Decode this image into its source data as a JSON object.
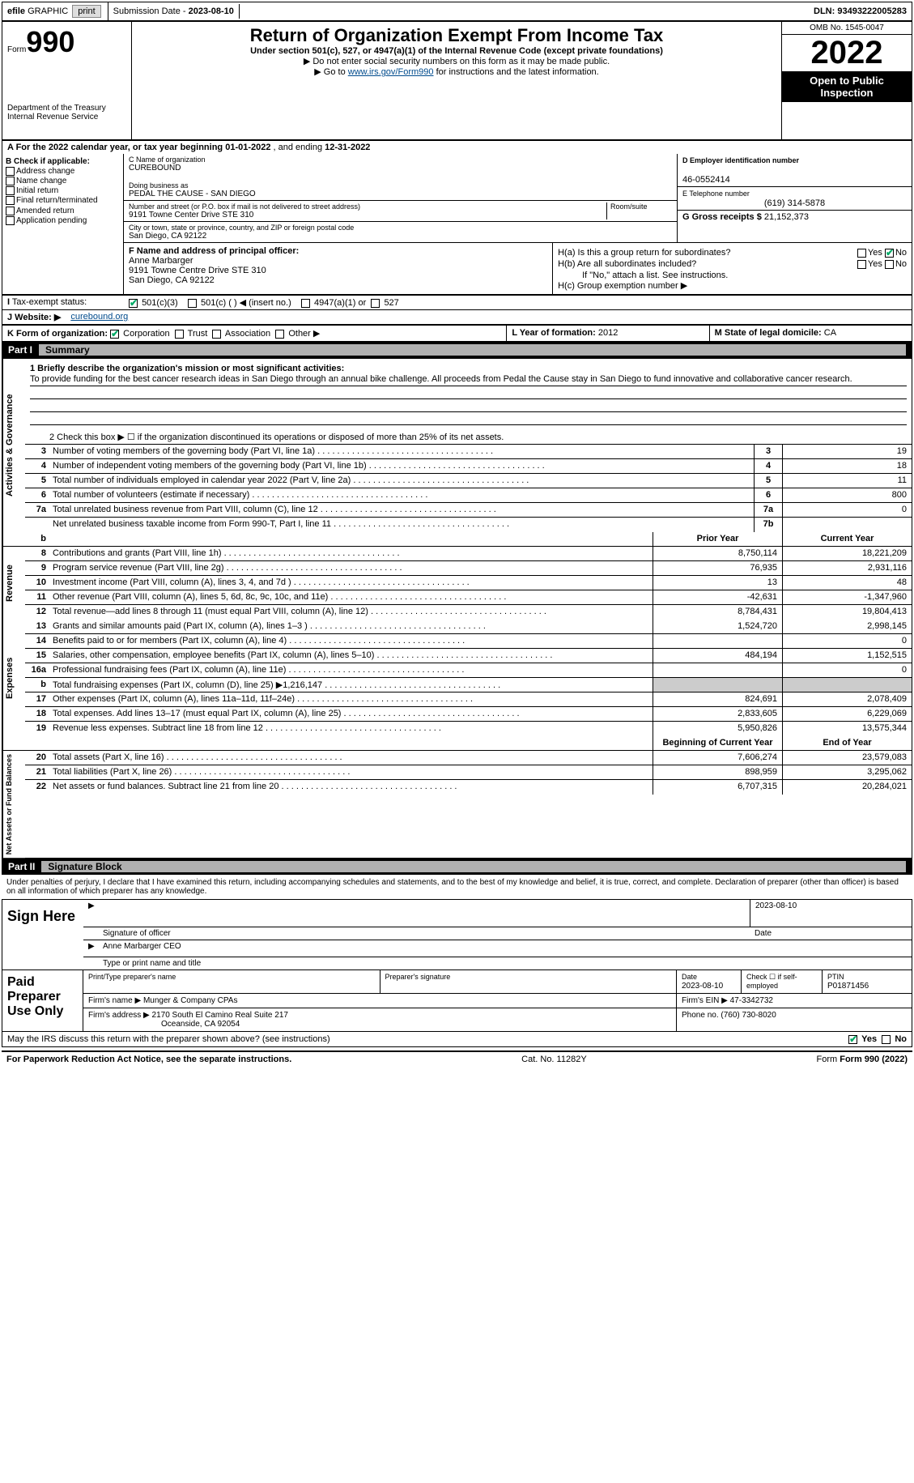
{
  "topbar": {
    "efile": "efile",
    "graphic": "GRAPHIC",
    "print_btn": "print",
    "sub_label": "Submission Date -",
    "sub_date": "2023-08-10",
    "dln_label": "DLN:",
    "dln": "93493222005283"
  },
  "hdr": {
    "form_word": "Form",
    "form_no": "990",
    "title": "Return of Organization Exempt From Income Tax",
    "sub1": "Under section 501(c), 527, or 4947(a)(1) of the Internal Revenue Code (except private foundations)",
    "sub2": "▶ Do not enter social security numbers on this form as it may be made public.",
    "sub3_pre": "▶ Go to ",
    "sub3_link": "www.irs.gov/Form990",
    "sub3_post": " for instructions and the latest information.",
    "omb": "OMB No. 1545-0047",
    "year": "2022",
    "inspection": "Open to Public Inspection",
    "dept": "Department of the Treasury Internal Revenue Service"
  },
  "rowA": {
    "lead": "A For the 2022 calendar year, or tax year beginning ",
    "begin": "01-01-2022",
    "mid": " , and ending ",
    "end": "12-31-2022"
  },
  "B": {
    "title": "B Check if applicable:",
    "items": [
      "Address change",
      "Name change",
      "Initial return",
      "Final return/terminated",
      "Amended return",
      "Application pending"
    ]
  },
  "C": {
    "name_lbl": "C Name of organization",
    "name": "CUREBOUND",
    "dba_lbl": "Doing business as",
    "dba": "PEDAL THE CAUSE - SAN DIEGO",
    "addr_lbl": "Number and street (or P.O. box if mail is not delivered to street address)",
    "room_lbl": "Room/suite",
    "addr": "9191 Towne Center Drive STE 310",
    "city_lbl": "City or town, state or province, country, and ZIP or foreign postal code",
    "city": "San Diego, CA  92122"
  },
  "D": {
    "lbl": "D Employer identification number",
    "val": "46-0552414"
  },
  "E": {
    "lbl": "E Telephone number",
    "val": "(619) 314-5878"
  },
  "G": {
    "lbl": "G Gross receipts $",
    "val": "21,152,373"
  },
  "F": {
    "lbl": "F Name and address of principal officer:",
    "name": "Anne Marbarger",
    "addr1": "9191 Towne Centre Drive STE 310",
    "addr2": "San Diego, CA  92122"
  },
  "H": {
    "a": "H(a)  Is this a group return for subordinates?",
    "b": "H(b)  Are all subordinates included?",
    "note": "If \"No,\" attach a list. See instructions.",
    "c": "H(c)  Group exemption number ▶",
    "yes": "Yes",
    "no": "No"
  },
  "I": {
    "lbl": "Tax-exempt status:",
    "o1": "501(c)(3)",
    "o2": "501(c) (  ) ◀ (insert no.)",
    "o3": "4947(a)(1) or",
    "o4": "527"
  },
  "J": {
    "lbl": "J  Website: ▶",
    "val": "curebound.org"
  },
  "K": {
    "lbl": "K Form of organization:",
    "corp": "Corporation",
    "trust": "Trust",
    "assoc": "Association",
    "other": "Other ▶"
  },
  "L": {
    "lbl": "L Year of formation:",
    "val": "2012"
  },
  "M": {
    "lbl": "M State of legal domicile:",
    "val": "CA"
  },
  "part1": {
    "no": "Part I",
    "title": "Summary"
  },
  "mission": {
    "lead": "1   Briefly describe the organization's mission or most significant activities:",
    "text": "To provide funding for the best cancer research ideas in San Diego through an annual bike challenge. All proceeds from Pedal the Cause stay in San Diego to fund innovative and collaborative cancer research."
  },
  "line2": "2   Check this box ▶ ☐  if the organization discontinued its operations or disposed of more than 25% of its net assets.",
  "sideLabels": {
    "ag": "Activities & Governance",
    "rev": "Revenue",
    "exp": "Expenses",
    "na": "Net Assets or Fund Balances"
  },
  "rows_top": [
    {
      "n": "3",
      "d": "Number of voting members of the governing body (Part VI, line 1a)",
      "b": "3",
      "v": "19"
    },
    {
      "n": "4",
      "d": "Number of independent voting members of the governing body (Part VI, line 1b)",
      "b": "4",
      "v": "18"
    },
    {
      "n": "5",
      "d": "Total number of individuals employed in calendar year 2022 (Part V, line 2a)",
      "b": "5",
      "v": "11"
    },
    {
      "n": "6",
      "d": "Total number of volunteers (estimate if necessary)",
      "b": "6",
      "v": "800"
    },
    {
      "n": "7a",
      "d": "Total unrelated business revenue from Part VIII, column (C), line 12",
      "b": "7a",
      "v": "0"
    },
    {
      "n": "",
      "d": "Net unrelated business taxable income from Form 990-T, Part I, line 11",
      "b": "7b",
      "v": ""
    }
  ],
  "col_hdrs": {
    "b": "b",
    "prior": "Prior Year",
    "current": "Current Year"
  },
  "rows_rev": [
    {
      "n": "8",
      "d": "Contributions and grants (Part VIII, line 1h)",
      "p": "8,750,114",
      "c": "18,221,209"
    },
    {
      "n": "9",
      "d": "Program service revenue (Part VIII, line 2g)",
      "p": "76,935",
      "c": "2,931,116"
    },
    {
      "n": "10",
      "d": "Investment income (Part VIII, column (A), lines 3, 4, and 7d )",
      "p": "13",
      "c": "48"
    },
    {
      "n": "11",
      "d": "Other revenue (Part VIII, column (A), lines 5, 6d, 8c, 9c, 10c, and 11e)",
      "p": "-42,631",
      "c": "-1,347,960"
    },
    {
      "n": "12",
      "d": "Total revenue—add lines 8 through 11 (must equal Part VIII, column (A), line 12)",
      "p": "8,784,431",
      "c": "19,804,413"
    }
  ],
  "rows_exp": [
    {
      "n": "13",
      "d": "Grants and similar amounts paid (Part IX, column (A), lines 1–3 )",
      "p": "1,524,720",
      "c": "2,998,145"
    },
    {
      "n": "14",
      "d": "Benefits paid to or for members (Part IX, column (A), line 4)",
      "p": "",
      "c": "0"
    },
    {
      "n": "15",
      "d": "Salaries, other compensation, employee benefits (Part IX, column (A), lines 5–10)",
      "p": "484,194",
      "c": "1,152,515"
    },
    {
      "n": "16a",
      "d": "Professional fundraising fees (Part IX, column (A), line 11e)",
      "p": "",
      "c": "0"
    },
    {
      "n": "b",
      "d": "Total fundraising expenses (Part IX, column (D), line 25) ▶1,216,147",
      "p": "SHADE",
      "c": "SHADE"
    },
    {
      "n": "17",
      "d": "Other expenses (Part IX, column (A), lines 11a–11d, 11f–24e)",
      "p": "824,691",
      "c": "2,078,409"
    },
    {
      "n": "18",
      "d": "Total expenses. Add lines 13–17 (must equal Part IX, column (A), line 25)",
      "p": "2,833,605",
      "c": "6,229,069"
    },
    {
      "n": "19",
      "d": "Revenue less expenses. Subtract line 18 from line 12",
      "p": "5,950,826",
      "c": "13,575,344"
    }
  ],
  "na_hdrs": {
    "begin": "Beginning of Current Year",
    "end": "End of Year"
  },
  "rows_na": [
    {
      "n": "20",
      "d": "Total assets (Part X, line 16)",
      "p": "7,606,274",
      "c": "23,579,083"
    },
    {
      "n": "21",
      "d": "Total liabilities (Part X, line 26)",
      "p": "898,959",
      "c": "3,295,062"
    },
    {
      "n": "22",
      "d": "Net assets or fund balances. Subtract line 21 from line 20",
      "p": "6,707,315",
      "c": "20,284,021"
    }
  ],
  "part2": {
    "no": "Part II",
    "title": "Signature Block"
  },
  "declare": "Under penalties of perjury, I declare that I have examined this return, including accompanying schedules and statements, and to the best of my knowledge and belief, it is true, correct, and complete. Declaration of preparer (other than officer) is based on all information of which preparer has any knowledge.",
  "sign": {
    "here": "Sign Here",
    "sig_lbl": "Signature of officer",
    "date_lbl": "Date",
    "date": "2023-08-10",
    "name": "Anne Marbarger CEO",
    "name_lbl": "Type or print name and title"
  },
  "prep": {
    "lbl": "Paid Preparer Use Only",
    "name_lbl": "Print/Type preparer's name",
    "sig_lbl": "Preparer's signature",
    "date_lbl": "Date",
    "date": "2023-08-10",
    "check_lbl": "Check ☐ if self-employed",
    "ptin_lbl": "PTIN",
    "ptin": "P01871456",
    "firm_name_lbl": "Firm's name   ▶",
    "firm_name": "Munger & Company CPAs",
    "firm_ein_lbl": "Firm's EIN ▶",
    "firm_ein": "47-3342732",
    "firm_addr_lbl": "Firm's address ▶",
    "firm_addr1": "2170 South El Camino Real Suite 217",
    "firm_addr2": "Oceanside, CA  92054",
    "phone_lbl": "Phone no.",
    "phone": "(760) 730-8020"
  },
  "discuss": {
    "q": "May the IRS discuss this return with the preparer shown above? (see instructions)",
    "yes": "Yes",
    "no": "No"
  },
  "footer": {
    "left": "For Paperwork Reduction Act Notice, see the separate instructions.",
    "mid": "Cat. No. 11282Y",
    "right": "Form 990 (2022)"
  }
}
